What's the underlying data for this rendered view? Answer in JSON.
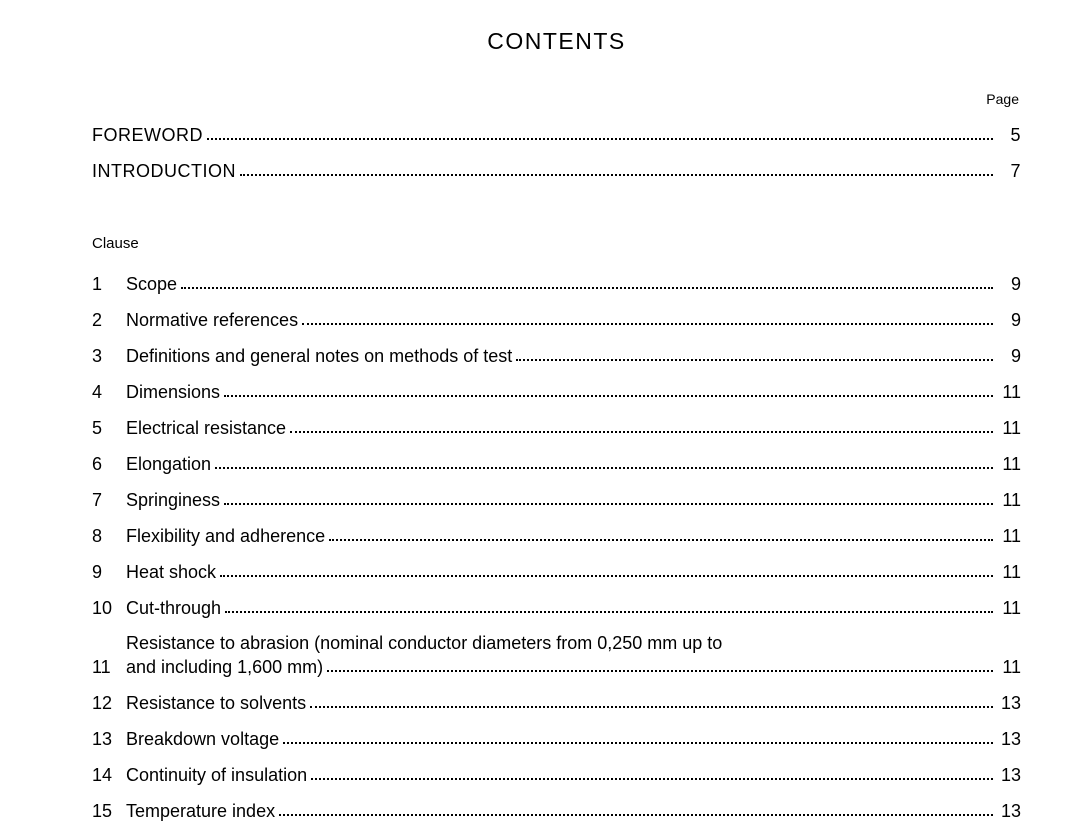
{
  "title": "CONTENTS",
  "pageLabel": "Page",
  "clauseLabel": "Clause",
  "topEntries": [
    {
      "label": "FOREWORD",
      "page": "5"
    },
    {
      "label": "INTRODUCTION",
      "page": "7"
    }
  ],
  "clauses": [
    {
      "num": "1",
      "label": "Scope",
      "page": "9"
    },
    {
      "num": "2",
      "label": "Normative references",
      "page": "9"
    },
    {
      "num": "3",
      "label": "Definitions and general notes on methods of test",
      "page": "9"
    },
    {
      "num": "4",
      "label": "Dimensions",
      "page": "11"
    },
    {
      "num": "5",
      "label": "Electrical resistance",
      "page": "11"
    },
    {
      "num": "6",
      "label": "Elongation",
      "page": "11"
    },
    {
      "num": "7",
      "label": "Springiness",
      "page": "11"
    },
    {
      "num": "8",
      "label": "Flexibility and adherence",
      "page": "11"
    },
    {
      "num": "9",
      "label": "Heat shock",
      "page": "11"
    },
    {
      "num": "10",
      "label": "Cut-through",
      "page": "11"
    },
    {
      "num": "11",
      "label_line1": "Resistance to abrasion (nominal conductor diameters from 0,250 mm up to",
      "label_line2": "and including 1,600 mm)",
      "page": "11",
      "multiline": true
    },
    {
      "num": "12",
      "label": "Resistance to solvents",
      "page": "13"
    },
    {
      "num": "13",
      "label": "Breakdown voltage",
      "page": "13"
    },
    {
      "num": "14",
      "label": "Continuity of insulation",
      "page": "13"
    },
    {
      "num": "15",
      "label": "Temperature index",
      "page": "13"
    }
  ]
}
